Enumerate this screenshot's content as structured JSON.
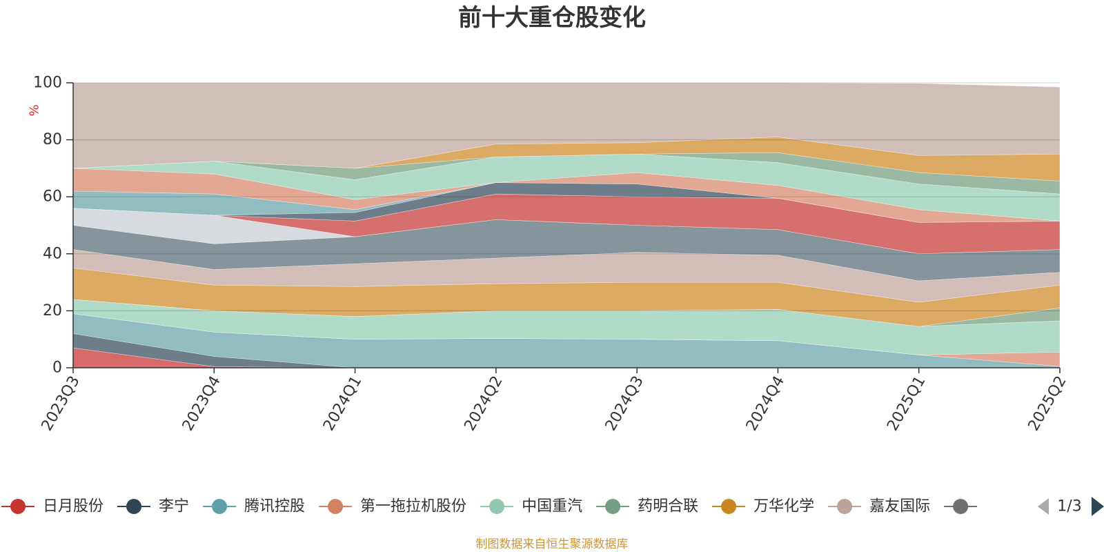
{
  "chart_data": {
    "type": "area",
    "title": "前十大重仓股变化",
    "ylabel": "%",
    "ylim": [
      0,
      100
    ],
    "yticks": [
      0,
      20,
      40,
      60,
      80,
      100
    ],
    "grid": true,
    "legend_position": "bottom",
    "x": [
      "2023Q3",
      "2023Q4",
      "2024Q1",
      "2024Q2",
      "2024Q3",
      "2024Q4",
      "2025Q1",
      "2025Q2"
    ],
    "bands": [
      {
        "color": "#d66b6a",
        "lower": [
          0,
          0,
          0,
          0,
          0,
          0,
          0,
          0
        ],
        "upper": [
          7,
          0.4,
          0,
          0,
          0,
          0,
          0,
          0
        ]
      },
      {
        "color": "#6e7d8a",
        "lower": [
          7,
          0.4,
          0,
          0,
          0,
          0,
          0,
          0
        ],
        "upper": [
          12,
          4,
          0,
          0,
          0,
          0,
          0,
          0
        ]
      },
      {
        "color": "#91bcc1",
        "lower": [
          12,
          4,
          0,
          0,
          0,
          0,
          0,
          0
        ],
        "upper": [
          19,
          12.5,
          10,
          10.3,
          10,
          9.5,
          4.5,
          0.5
        ]
      },
      {
        "color": "#e2a894",
        "lower": [
          19,
          12.5,
          10,
          10.3,
          10,
          9.5,
          4.5,
          0.5
        ],
        "upper": [
          19,
          12.5,
          10,
          10.3,
          10,
          9.5,
          4.5,
          5.5
        ]
      },
      {
        "color": "#b0dbc8",
        "lower": [
          19,
          12.5,
          10,
          10.3,
          10,
          9.5,
          4.5,
          5.5
        ],
        "upper": [
          24,
          20,
          18,
          20,
          20,
          20.5,
          14.5,
          16.5
        ]
      },
      {
        "color": "#9ab8a2",
        "lower": [
          24,
          20,
          18,
          20,
          20,
          20.5,
          14.5,
          16.5
        ],
        "upper": [
          24,
          20,
          18,
          20,
          20,
          20.5,
          14.5,
          21
        ]
      },
      {
        "color": "#dcaa62",
        "lower": [
          24,
          20,
          18,
          20,
          20,
          20.5,
          14.5,
          21
        ],
        "upper": [
          35,
          29,
          28.5,
          29.5,
          30,
          30,
          23,
          29
        ]
      },
      {
        "color": "#d3bdb8",
        "lower": [
          35,
          29,
          28.5,
          29.5,
          30,
          30,
          23,
          29
        ],
        "upper": [
          41.5,
          34.5,
          36.5,
          38.5,
          40.5,
          39.5,
          30.5,
          33.5
        ]
      },
      {
        "color": "#86949c",
        "lower": [
          41.5,
          34.5,
          36.5,
          38.5,
          40.5,
          39.5,
          30.5,
          33.5
        ],
        "upper": [
          50,
          43.5,
          46,
          52,
          50,
          48.5,
          40,
          41.5
        ]
      },
      {
        "color": "#d7dbe0",
        "lower": [
          50,
          43.5,
          46,
          52,
          50,
          48.5,
          40,
          41.5
        ],
        "upper": [
          56,
          53.5,
          46,
          52,
          50,
          48.5,
          40,
          41.5
        ]
      },
      {
        "color": "#d6706e",
        "lower": [
          56,
          53.5,
          46,
          52,
          50,
          48.5,
          40,
          41.5
        ],
        "upper": [
          56,
          53.5,
          51.5,
          61,
          60,
          59.5,
          51,
          51.5
        ]
      },
      {
        "color": "#6d7d89",
        "lower": [
          56,
          53.5,
          51.5,
          61,
          60,
          59.5,
          51,
          51.5
        ],
        "upper": [
          56,
          53.5,
          54.5,
          65,
          64.5,
          59.5,
          51,
          51.5
        ]
      },
      {
        "color": "#91bcc1",
        "lower": [
          56,
          53.5,
          54.5,
          65,
          64.5,
          59.5,
          51,
          51.5
        ],
        "upper": [
          62,
          61,
          55.5,
          65,
          64.5,
          59.5,
          51,
          51.5
        ]
      },
      {
        "color": "#e2a894",
        "lower": [
          62,
          61,
          55.5,
          65,
          64.5,
          59.5,
          51,
          51.5
        ],
        "upper": [
          70,
          68,
          59,
          65,
          68.5,
          64,
          55.5,
          51.5
        ]
      },
      {
        "color": "#b0dbc8",
        "lower": [
          70,
          68,
          59,
          65,
          68.5,
          64,
          55.5,
          51.5
        ],
        "upper": [
          70,
          72.5,
          66,
          74,
          75,
          72,
          64.5,
          61
        ]
      },
      {
        "color": "#9ab8a2",
        "lower": [
          70,
          72.5,
          66,
          74,
          75,
          72,
          64.5,
          61
        ],
        "upper": [
          70,
          72.5,
          70,
          74,
          75,
          75.5,
          68.5,
          65.5
        ]
      },
      {
        "color": "#dcaa62",
        "lower": [
          70,
          72.5,
          70,
          74,
          75,
          75.5,
          68.5,
          65.5
        ],
        "upper": [
          70,
          72.5,
          70,
          78.5,
          79,
          81,
          74.5,
          75
        ]
      },
      {
        "color": "#d0bfb8",
        "lower": [
          70,
          72.5,
          70,
          78.5,
          79,
          81,
          74.5,
          75
        ],
        "upper": [
          100,
          100,
          100,
          100,
          100,
          100,
          99.8,
          98.5
        ]
      }
    ],
    "legend": [
      {
        "name": "日月股份",
        "color": "#c23531"
      },
      {
        "name": "李宁",
        "color": "#2f4554"
      },
      {
        "name": "腾讯控股",
        "color": "#61a0a8"
      },
      {
        "name": "第一拖拉机股份",
        "color": "#d48265"
      },
      {
        "name": "中国重汽",
        "color": "#91c7ae"
      },
      {
        "name": "药明合联",
        "color": "#749f83"
      },
      {
        "name": "万华化学",
        "color": "#ca8622"
      },
      {
        "name": "嘉友国际",
        "color": "#bda29a"
      },
      {
        "name": "",
        "color": "#6e7074"
      }
    ],
    "page_indicator": "1/3"
  },
  "source_note": "制图数据来自恒生聚源数据库"
}
